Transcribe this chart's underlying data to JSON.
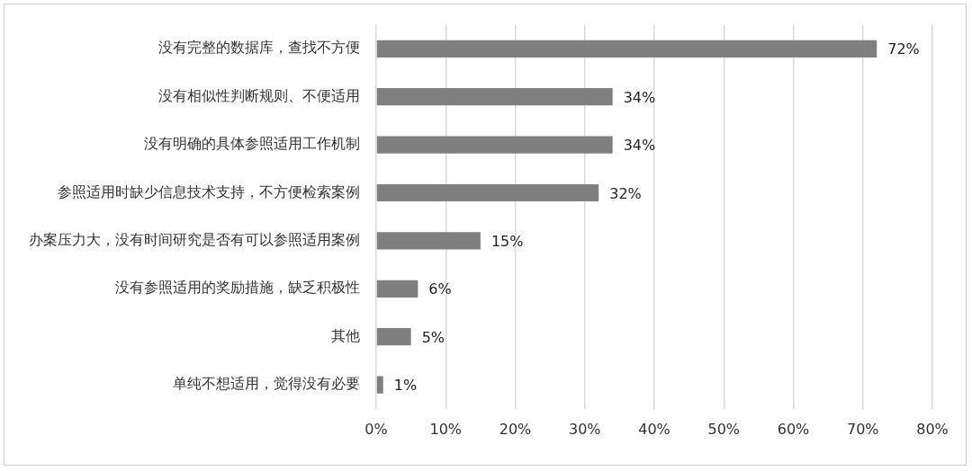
{
  "chart_data": {
    "type": "bar",
    "orientation": "horizontal",
    "categories": [
      "没有完整的数据库，查找不方便",
      "没有相似性判断规则、不便适用",
      "没有明确的具体参照适用工作机制",
      "参照适用时缺少信息技术支持，不方便检索案例",
      "办案压力大，没有时间研究是否有可以参照适用案例",
      "没有参照适用的奖励措施，缺乏积极性",
      "其他",
      "单纯不想适用，觉得没有必要"
    ],
    "values": [
      72,
      34,
      34,
      32,
      15,
      6,
      5,
      1
    ],
    "value_labels": [
      "72%",
      "34%",
      "34%",
      "32%",
      "15%",
      "6%",
      "5%",
      "1%"
    ],
    "color": "#7f7f7f",
    "xlim": [
      0,
      80
    ],
    "xticks": [
      {
        "value": 0,
        "label": "0%"
      },
      {
        "value": 10,
        "label": "10%"
      },
      {
        "value": 20,
        "label": "20%"
      },
      {
        "value": 30,
        "label": "30%"
      },
      {
        "value": 40,
        "label": "40%"
      },
      {
        "value": 50,
        "label": "50%"
      },
      {
        "value": 60,
        "label": "60%"
      },
      {
        "value": 70,
        "label": "70%"
      },
      {
        "value": 80,
        "label": "80%"
      }
    ],
    "grid": "x",
    "legend": false
  }
}
